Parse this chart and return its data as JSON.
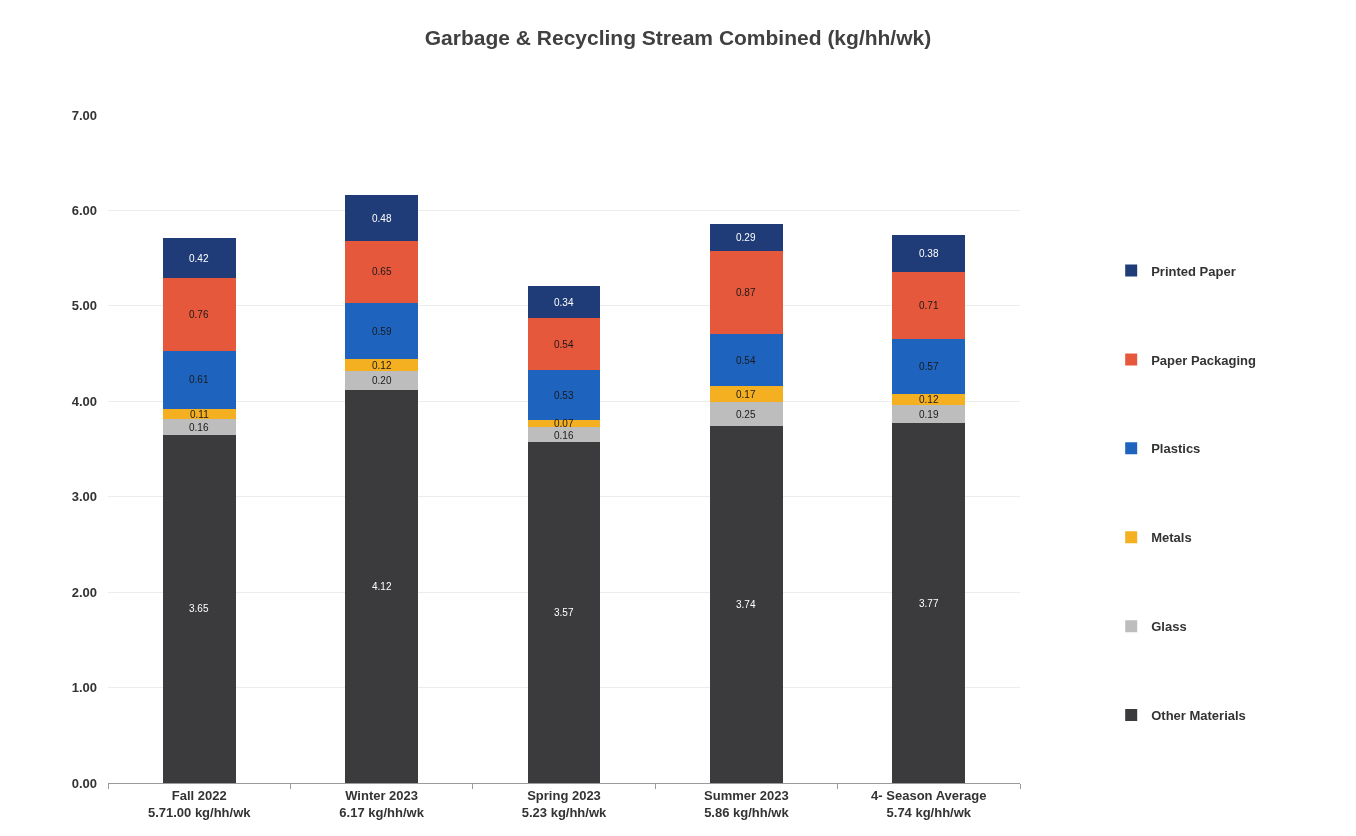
{
  "chart_data": {
    "type": "bar",
    "stacked": true,
    "title": "Garbage & Recycling Stream Combined (kg/hh/wk)",
    "categories": [
      "Fall 2022\n5.71.00 kg/hh/wk",
      "Winter 2023\n6.17 kg/hh/wk",
      "Spring 2023\n5.23 kg/hh/wk",
      "Summer 2023\n5.86 kg/hh/wk",
      "4- Season Average\n5.74 kg/hh/wk"
    ],
    "series": [
      {
        "name": "Other Materials",
        "color": "#3b3a3c",
        "values": [
          3.65,
          4.12,
          3.57,
          3.74,
          3.77
        ],
        "value_labels": [
          "3.65",
          "4.12",
          "3.57",
          "3.74",
          "3.77"
        ]
      },
      {
        "name": "Glass",
        "color": "#bdbdbd",
        "values": [
          0.16,
          0.2,
          0.16,
          0.25,
          0.19
        ],
        "value_labels": [
          "0.16",
          "0.20",
          "0.16",
          "0.25",
          "0.19"
        ]
      },
      {
        "name": "Metals",
        "color": "#f4b021",
        "values": [
          0.11,
          0.12,
          0.07,
          0.17,
          0.12
        ],
        "value_labels": [
          "0.11",
          "0.12",
          "0.07",
          "0.17",
          "0.12"
        ]
      },
      {
        "name": "Plastics",
        "color": "#1e64bf",
        "values": [
          0.61,
          0.59,
          0.53,
          0.54,
          0.57
        ],
        "value_labels": [
          "0.61",
          "0.59",
          "0.53",
          "0.54",
          "0.57"
        ]
      },
      {
        "name": "Paper Packaging",
        "color": "#e5583b",
        "values": [
          0.76,
          0.65,
          0.54,
          0.87,
          0.71
        ],
        "value_labels": [
          "0.76",
          "0.65",
          "0.54",
          "0.87",
          "0.71"
        ]
      },
      {
        "name": "Printed Paper",
        "color": "#1f3c78",
        "values": [
          0.42,
          0.48,
          0.34,
          0.29,
          0.38
        ],
        "value_labels": [
          "0.42",
          "0.48",
          "0.34",
          "0.29",
          "0.38"
        ]
      }
    ],
    "ylim": [
      0,
      7
    ],
    "yticks": [
      {
        "value": 0,
        "label": "0.00"
      },
      {
        "value": 1,
        "label": "1.00"
      },
      {
        "value": 2,
        "label": "2.00"
      },
      {
        "value": 3,
        "label": "3.00"
      },
      {
        "value": 4,
        "label": "4.00"
      },
      {
        "value": 5,
        "label": "5.00"
      },
      {
        "value": 6,
        "label": "6.00"
      },
      {
        "value": 7,
        "label": "7.00"
      }
    ],
    "grid": "y",
    "legend": "right"
  }
}
